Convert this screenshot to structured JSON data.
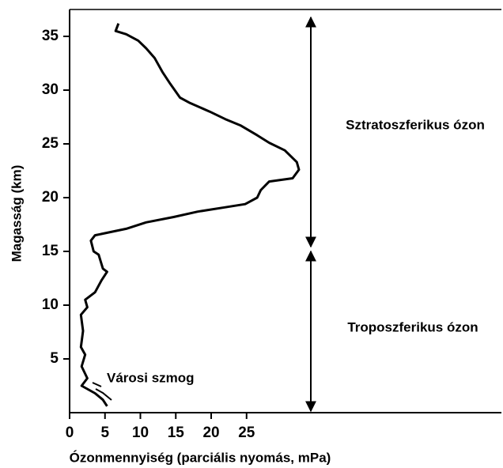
{
  "chart_data": {
    "type": "line",
    "x_label": "Ózonmennyiség (parciális nyomás, mPa)",
    "y_label": "Magasság (km)",
    "annotations": [
      "Sztratoszferikus ózon",
      "Troposzferikus ózon",
      "Városi szmog"
    ],
    "color": "#000000",
    "x": [
      6.9,
      6.5,
      8.0,
      9.7,
      10.8,
      12.0,
      13.1,
      14.2,
      15.6,
      17.0,
      19.8,
      22.0,
      24.2,
      26.5,
      28.2,
      30.4,
      32.1,
      32.4,
      31.5,
      28.2,
      27.0,
      26.5,
      24.8,
      22.0,
      18.1,
      14.7,
      10.8,
      8.0,
      3.6,
      3.0,
      3.4,
      4.1,
      4.7,
      5.3,
      4.5,
      3.6,
      2.2,
      2.5,
      1.6,
      1.9,
      1.6,
      2.2,
      1.7,
      2.5,
      1.7,
      3.6,
      4.7,
      5.3
    ],
    "values": [
      36.2,
      35.5,
      35.2,
      34.6,
      33.9,
      33.0,
      31.7,
      30.6,
      29.3,
      28.8,
      28.0,
      27.3,
      26.7,
      25.8,
      25.1,
      24.4,
      23.3,
      22.6,
      21.8,
      21.5,
      20.7,
      20.0,
      19.4,
      19.1,
      18.7,
      18.2,
      17.7,
      17.1,
      16.5,
      16.0,
      15.0,
      14.7,
      13.4,
      13.1,
      12.3,
      11.2,
      10.5,
      9.8,
      9.1,
      7.6,
      6.1,
      5.4,
      4.3,
      3.2,
      2.5,
      1.8,
      1.2,
      0.6
    ],
    "xlim": [
      0,
      61
    ],
    "ylim": [
      0,
      37.5
    ],
    "xticks": [
      0,
      5,
      10,
      15,
      20,
      25
    ],
    "yticks": [
      5,
      10,
      15,
      20,
      25,
      30,
      35
    ],
    "grid": false
  }
}
